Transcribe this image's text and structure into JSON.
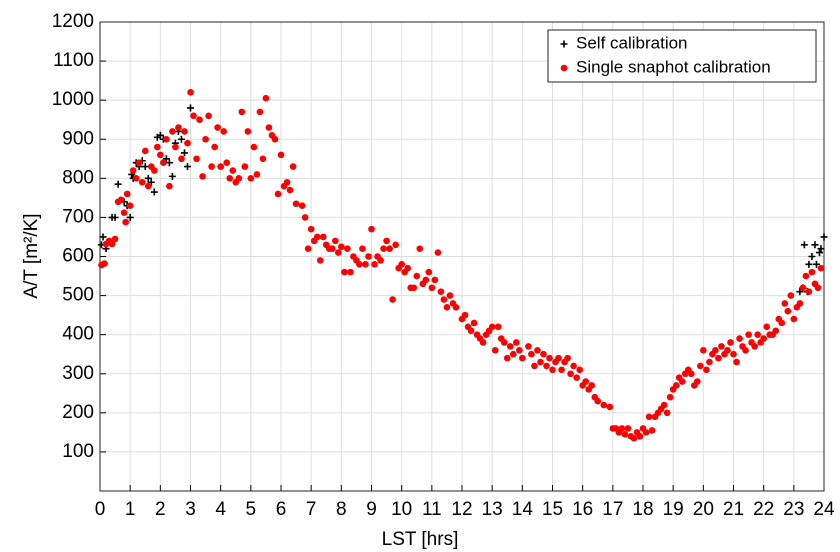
{
  "chart_data": {
    "type": "scatter",
    "xlabel": "LST [hrs]",
    "ylabel": "A/T [m²/K]",
    "xlim": [
      0,
      24
    ],
    "ylim": [
      0,
      1200
    ],
    "xticks": [
      0,
      1,
      2,
      3,
      4,
      5,
      6,
      7,
      8,
      9,
      10,
      11,
      12,
      13,
      14,
      15,
      16,
      17,
      18,
      19,
      20,
      21,
      22,
      23,
      24
    ],
    "yticks": [
      100,
      200,
      300,
      400,
      500,
      600,
      700,
      800,
      900,
      1000,
      1100,
      1200
    ],
    "grid": true,
    "legend": "upper right",
    "series": [
      {
        "name": "Self calibration",
        "color": "#000000",
        "marker": "plus",
        "x": [
          0.05,
          0.1,
          0.2,
          0.4,
          0.5,
          0.6,
          0.8,
          0.9,
          1.0,
          1.05,
          1.1,
          1.2,
          1.3,
          1.4,
          1.5,
          1.6,
          1.7,
          1.8,
          1.9,
          2.0,
          2.1,
          2.2,
          2.3,
          2.4,
          2.5,
          2.6,
          2.7,
          2.8,
          2.9,
          3.0,
          23.2,
          23.3,
          23.35,
          23.45,
          23.5,
          23.6,
          23.7,
          23.75,
          23.85,
          23.9,
          24.0
        ],
        "values": [
          630,
          650,
          620,
          700,
          700,
          785,
          740,
          730,
          700,
          810,
          800,
          840,
          830,
          845,
          830,
          800,
          790,
          765,
          905,
          910,
          900,
          850,
          840,
          805,
          890,
          920,
          900,
          865,
          830,
          980,
          510,
          520,
          630,
          510,
          580,
          600,
          630,
          580,
          610,
          620,
          650
        ]
      },
      {
        "name": "Single snaphot calibration",
        "color": "#ff0000",
        "marker": "dot",
        "x": [
          0.05,
          0.15,
          0.2,
          0.3,
          0.4,
          0.5,
          0.6,
          0.7,
          0.8,
          0.85,
          0.9,
          1.0,
          1.1,
          1.2,
          1.3,
          1.4,
          1.5,
          1.6,
          1.7,
          1.8,
          1.9,
          2.0,
          2.1,
          2.2,
          2.3,
          2.4,
          2.5,
          2.6,
          2.7,
          2.8,
          2.9,
          3.0,
          3.1,
          3.2,
          3.3,
          3.4,
          3.5,
          3.6,
          3.7,
          3.8,
          3.9,
          4.0,
          4.1,
          4.2,
          4.3,
          4.4,
          4.5,
          4.6,
          4.7,
          4.8,
          4.9,
          5.0,
          5.1,
          5.2,
          5.3,
          5.4,
          5.5,
          5.6,
          5.7,
          5.8,
          5.9,
          6.0,
          6.1,
          6.2,
          6.3,
          6.4,
          6.5,
          6.7,
          6.8,
          6.9,
          7.0,
          7.1,
          7.2,
          7.3,
          7.4,
          7.5,
          7.6,
          7.7,
          7.8,
          7.9,
          8.0,
          8.1,
          8.2,
          8.3,
          8.4,
          8.5,
          8.6,
          8.7,
          8.8,
          8.9,
          9.0,
          9.1,
          9.2,
          9.3,
          9.4,
          9.5,
          9.6,
          9.7,
          9.8,
          9.9,
          10.0,
          10.1,
          10.2,
          10.3,
          10.4,
          10.5,
          10.6,
          10.7,
          10.8,
          10.9,
          11.0,
          11.1,
          11.2,
          11.3,
          11.4,
          11.5,
          11.6,
          11.7,
          11.8,
          12.0,
          12.1,
          12.2,
          12.3,
          12.4,
          12.5,
          12.6,
          12.7,
          12.8,
          12.9,
          13.0,
          13.1,
          13.2,
          13.3,
          13.4,
          13.5,
          13.6,
          13.7,
          13.8,
          13.9,
          14.0,
          14.2,
          14.3,
          14.4,
          14.5,
          14.6,
          14.7,
          14.8,
          14.9,
          15.0,
          15.1,
          15.2,
          15.3,
          15.4,
          15.5,
          15.6,
          15.7,
          15.8,
          15.9,
          16.0,
          16.1,
          16.2,
          16.3,
          16.4,
          16.5,
          16.7,
          16.9,
          17.0,
          17.1,
          17.2,
          17.3,
          17.4,
          17.5,
          17.6,
          17.7,
          17.8,
          17.9,
          18.0,
          18.1,
          18.2,
          18.3,
          18.4,
          18.5,
          18.6,
          18.7,
          18.8,
          18.9,
          19.0,
          19.1,
          19.2,
          19.3,
          19.4,
          19.5,
          19.6,
          19.7,
          19.8,
          19.9,
          20.0,
          20.1,
          20.2,
          20.3,
          20.4,
          20.5,
          20.6,
          20.7,
          20.8,
          20.9,
          21.0,
          21.1,
          21.2,
          21.3,
          21.4,
          21.5,
          21.6,
          21.7,
          21.8,
          21.9,
          22.0,
          22.1,
          22.2,
          22.3,
          22.4,
          22.5,
          22.6,
          22.7,
          22.8,
          22.9,
          23.0,
          23.1,
          23.2,
          23.3,
          23.4,
          23.5,
          23.6,
          23.7,
          23.8,
          23.9
        ],
        "values": [
          578,
          582,
          632,
          640,
          632,
          645,
          740,
          745,
          712,
          688,
          760,
          730,
          820,
          800,
          840,
          790,
          870,
          780,
          830,
          820,
          880,
          860,
          840,
          900,
          780,
          920,
          880,
          930,
          850,
          920,
          890,
          1020,
          960,
          850,
          950,
          805,
          900,
          960,
          830,
          880,
          930,
          830,
          920,
          840,
          800,
          820,
          790,
          800,
          970,
          830,
          920,
          800,
          880,
          810,
          970,
          850,
          1005,
          930,
          910,
          900,
          760,
          860,
          780,
          790,
          770,
          830,
          735,
          730,
          700,
          620,
          670,
          640,
          650,
          590,
          650,
          630,
          620,
          620,
          640,
          610,
          625,
          560,
          620,
          560,
          600,
          590,
          580,
          620,
          580,
          600,
          670,
          580,
          600,
          590,
          620,
          640,
          620,
          490,
          630,
          570,
          580,
          560,
          570,
          520,
          520,
          550,
          620,
          530,
          540,
          560,
          520,
          540,
          610,
          510,
          490,
          470,
          500,
          480,
          470,
          440,
          450,
          420,
          410,
          430,
          400,
          390,
          380,
          400,
          410,
          420,
          360,
          420,
          390,
          380,
          340,
          370,
          350,
          380,
          360,
          340,
          370,
          350,
          320,
          360,
          330,
          350,
          320,
          340,
          310,
          330,
          340,
          310,
          330,
          340,
          300,
          320,
          290,
          310,
          270,
          280,
          260,
          270,
          240,
          230,
          220,
          215,
          160,
          160,
          150,
          160,
          145,
          160,
          140,
          135,
          150,
          140,
          160,
          150,
          190,
          155,
          190,
          200,
          210,
          220,
          200,
          240,
          260,
          270,
          290,
          280,
          300,
          310,
          300,
          270,
          280,
          320,
          360,
          310,
          330,
          350,
          360,
          340,
          370,
          350,
          360,
          380,
          350,
          330,
          390,
          370,
          360,
          400,
          380,
          370,
          400,
          380,
          390,
          420,
          400,
          400,
          410,
          440,
          430,
          480,
          460,
          500,
          440,
          470,
          480,
          520,
          550,
          510,
          560,
          530,
          520,
          570
        ]
      }
    ]
  }
}
